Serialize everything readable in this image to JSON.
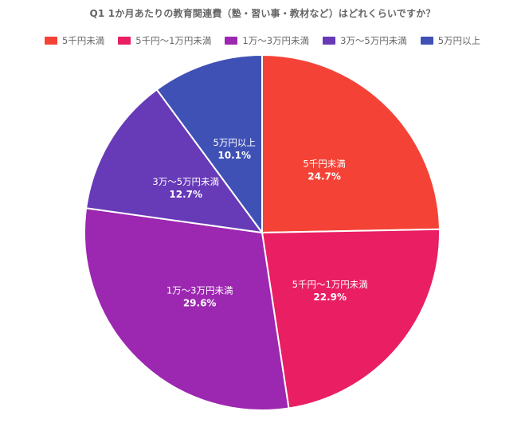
{
  "chart_data": {
    "type": "pie",
    "title": "Q1 1か月あたりの教育関連費（塾・習い事・教材など）はどれくらいですか？",
    "categories": [
      "5千円未満",
      "5千円〜1万円未満",
      "1万〜3万円未満",
      "3万〜5万円未満",
      "5万円以上"
    ],
    "values": [
      24.7,
      22.9,
      29.6,
      12.7,
      10.1
    ],
    "value_labels": [
      "24.7%",
      "22.9%",
      "29.6%",
      "12.7%",
      "10.1%"
    ],
    "colors": [
      "#f44336",
      "#e91e63",
      "#9c27b0",
      "#673ab7",
      "#3f51b5"
    ],
    "legend_position": "top"
  }
}
